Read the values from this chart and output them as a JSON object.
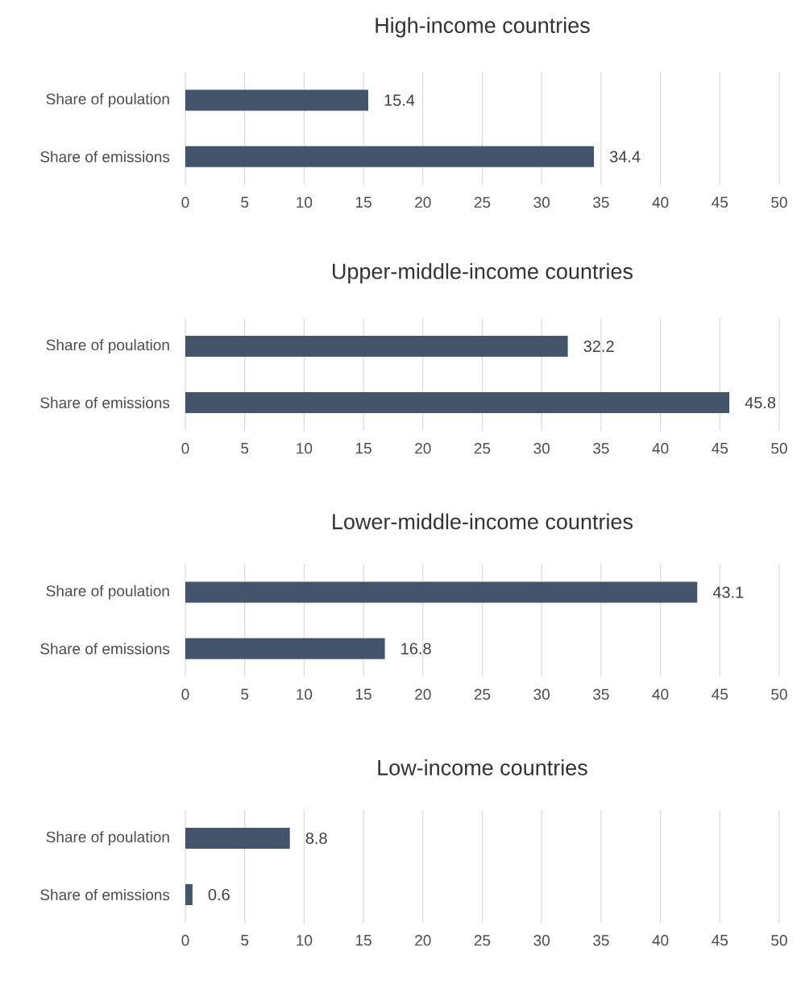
{
  "chart_data": [
    {
      "type": "bar",
      "orientation": "horizontal",
      "title": "High-income countries",
      "categories": [
        "Share of poulation",
        "Share of emissions"
      ],
      "values": [
        15.4,
        34.4
      ],
      "color": "#44546a",
      "xlim": [
        0,
        50
      ],
      "xticks": [
        0,
        5,
        10,
        15,
        20,
        25,
        30,
        35,
        40,
        45,
        50
      ],
      "grid": "x",
      "data_labels": true
    },
    {
      "type": "bar",
      "orientation": "horizontal",
      "title": "Upper-middle-income countries",
      "categories": [
        "Share of poulation",
        "Share of emissions"
      ],
      "values": [
        32.2,
        45.8
      ],
      "color": "#44546a",
      "xlim": [
        0,
        50
      ],
      "xticks": [
        0,
        5,
        10,
        15,
        20,
        25,
        30,
        35,
        40,
        45,
        50
      ],
      "grid": "x",
      "data_labels": true
    },
    {
      "type": "bar",
      "orientation": "horizontal",
      "title": "Lower-middle-income countries",
      "categories": [
        "Share of poulation",
        "Share of emissions"
      ],
      "values": [
        43.1,
        16.8
      ],
      "color": "#44546a",
      "xlim": [
        0,
        50
      ],
      "xticks": [
        0,
        5,
        10,
        15,
        20,
        25,
        30,
        35,
        40,
        45,
        50
      ],
      "grid": "x",
      "data_labels": true
    },
    {
      "type": "bar",
      "orientation": "horizontal",
      "title": "Low-income countries",
      "categories": [
        "Share of poulation",
        "Share of emissions"
      ],
      "values": [
        8.8,
        0.6
      ],
      "color": "#44546a",
      "xlim": [
        0,
        50
      ],
      "xticks": [
        0,
        5,
        10,
        15,
        20,
        25,
        30,
        35,
        40,
        45,
        50
      ],
      "grid": "x",
      "data_labels": true
    }
  ]
}
